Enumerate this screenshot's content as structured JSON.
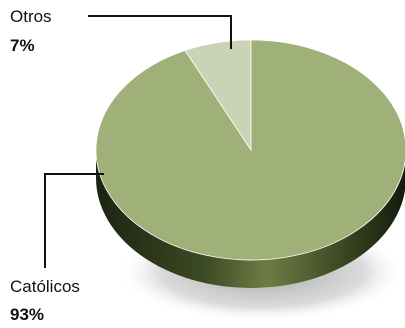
{
  "chart_data": {
    "type": "pie",
    "categories": [
      "Otros",
      "Católicos"
    ],
    "values": [
      7,
      93
    ],
    "labels": [
      {
        "name": "Otros",
        "pct": "7%"
      },
      {
        "name": "Católicos",
        "pct": "93%"
      }
    ],
    "colors": {
      "Otros": "#cad3b6",
      "Católicos": "#9fb079"
    }
  }
}
